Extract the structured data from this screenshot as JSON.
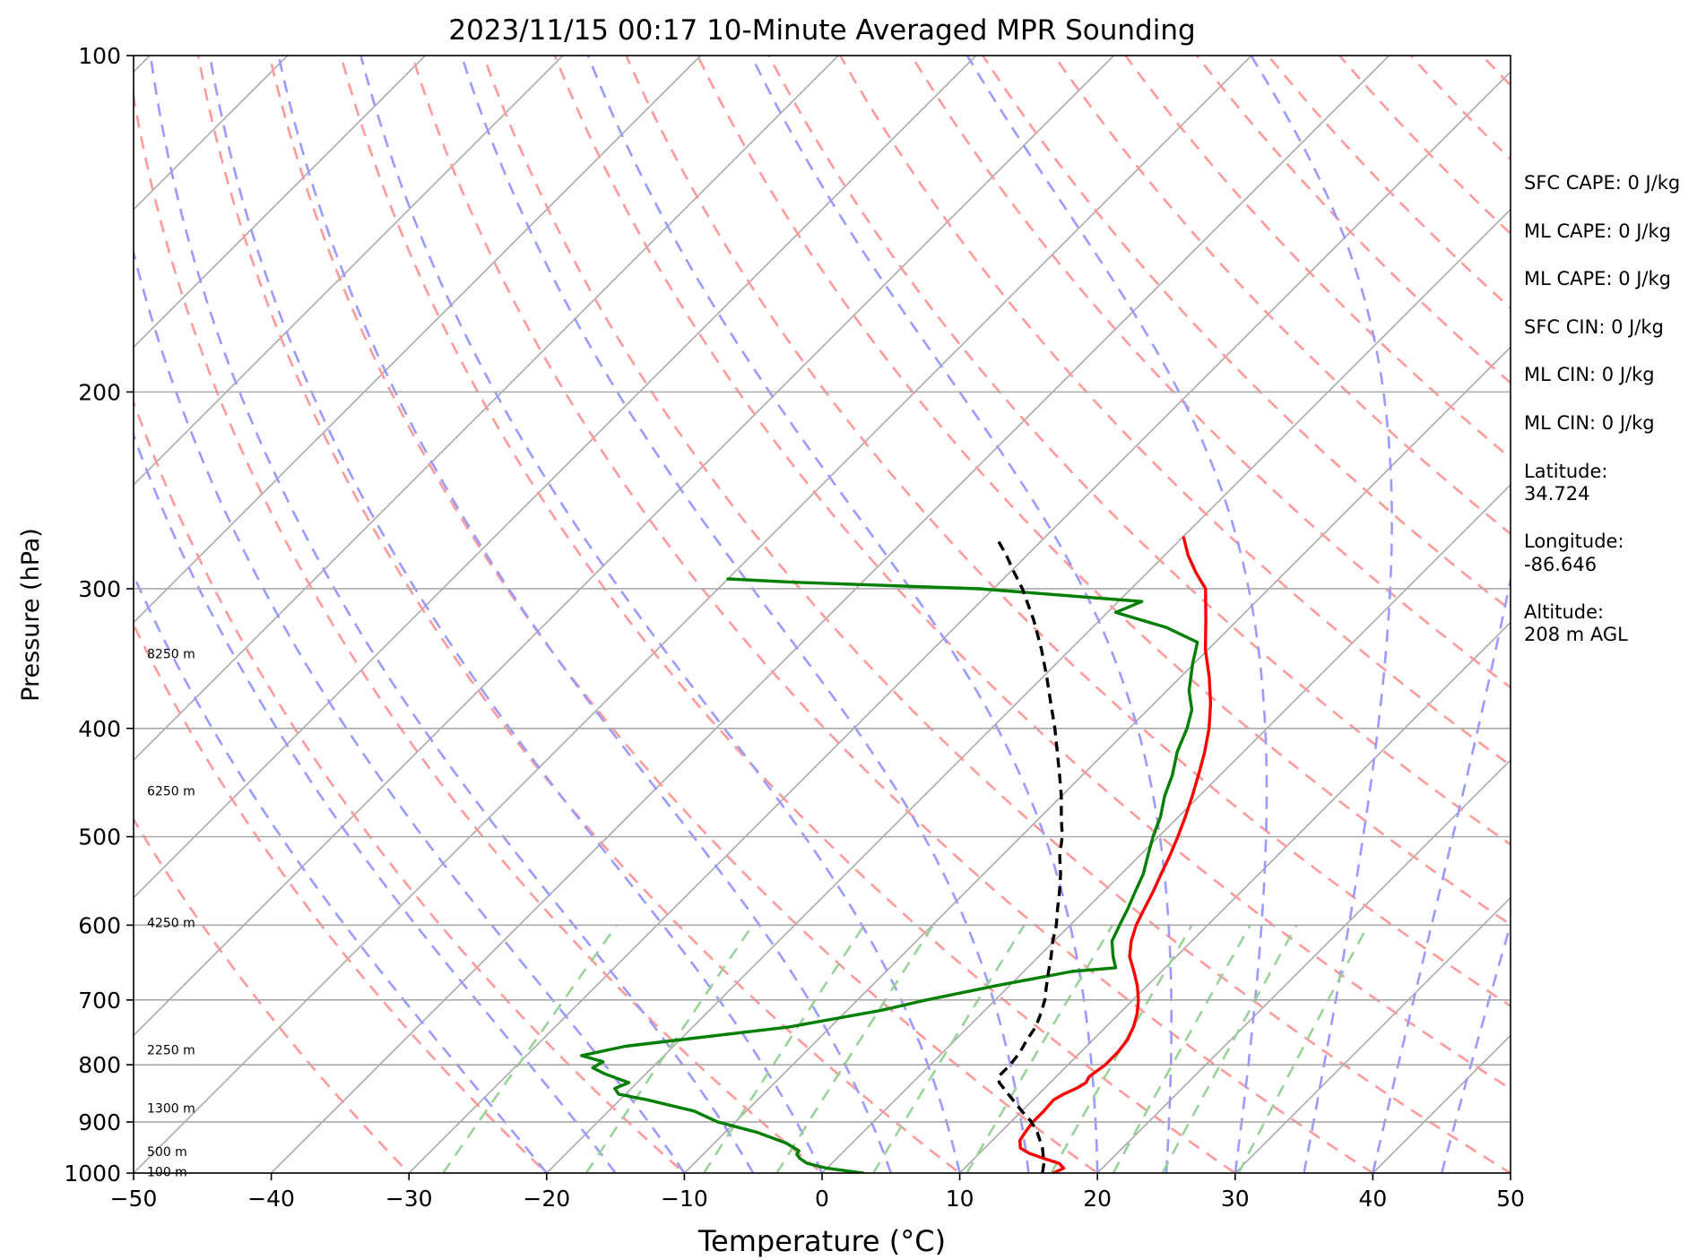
{
  "chart_data": {
    "type": "line",
    "title": "2023/11/15 00:17 10-Minute Averaged MPR Sounding",
    "xlabel": "Temperature (°C)",
    "ylabel": "Pressure (hPa)",
    "xlim": [
      -50,
      50
    ],
    "ylim": [
      1000,
      100
    ],
    "y_scale": "log",
    "grid": true,
    "x_ticks": [
      -50,
      -40,
      -30,
      -20,
      -10,
      0,
      10,
      20,
      30,
      40,
      50
    ],
    "x_tick_labels": [
      "−50",
      "−40",
      "−30",
      "−20",
      "−10",
      "0",
      "10",
      "20",
      "30",
      "40",
      "50"
    ],
    "y_ticks": [
      100,
      200,
      300,
      400,
      500,
      600,
      700,
      800,
      900,
      1000
    ],
    "y_tick_labels": [
      "100",
      "200",
      "300",
      "400",
      "500",
      "600",
      "700",
      "800",
      "900",
      "1000"
    ],
    "background_lines": {
      "dry_adiabats_color": "#ff9a9a",
      "moist_adiabats_color": "#9a9aff",
      "mixing_ratio_color": "#9ad29a",
      "isotherms_color": "#aaaaaa"
    },
    "series": [
      {
        "color": "#ff0000",
        "style": "solid",
        "points": [
          [
            1000,
            16.8
          ],
          [
            990,
            17.2
          ],
          [
            980,
            16.5
          ],
          [
            970,
            15.0
          ],
          [
            960,
            13.6
          ],
          [
            950,
            12.6
          ],
          [
            935,
            12.0
          ],
          [
            920,
            11.8
          ],
          [
            900,
            11.6
          ],
          [
            880,
            11.6
          ],
          [
            860,
            11.5
          ],
          [
            850,
            11.8
          ],
          [
            840,
            12.3
          ],
          [
            830,
            12.6
          ],
          [
            820,
            12.4
          ],
          [
            800,
            12.7
          ],
          [
            780,
            12.7
          ],
          [
            760,
            12.5
          ],
          [
            740,
            12.0
          ],
          [
            720,
            11.3
          ],
          [
            700,
            10.4
          ],
          [
            680,
            9.3
          ],
          [
            660,
            8.0
          ],
          [
            640,
            6.6
          ],
          [
            620,
            5.6
          ],
          [
            600,
            4.8
          ],
          [
            580,
            4.2
          ],
          [
            560,
            3.6
          ],
          [
            540,
            2.9
          ],
          [
            520,
            2.2
          ],
          [
            500,
            1.4
          ],
          [
            480,
            0.5
          ],
          [
            460,
            -0.5
          ],
          [
            440,
            -1.6
          ],
          [
            420,
            -2.8
          ],
          [
            400,
            -4.2
          ],
          [
            380,
            -5.9
          ],
          [
            360,
            -7.9
          ],
          [
            340,
            -10.2
          ],
          [
            320,
            -12.3
          ],
          [
            300,
            -14.6
          ],
          [
            290,
            -16.5
          ],
          [
            280,
            -18.3
          ],
          [
            270,
            -19.9
          ]
        ]
      },
      {
        "color": "#007f00",
        "style": "solid",
        "points": [
          [
            1000,
            3.0
          ],
          [
            990,
            0.0
          ],
          [
            980,
            -1.8
          ],
          [
            970,
            -2.7
          ],
          [
            962,
            -3.2
          ],
          [
            955,
            -3.3
          ],
          [
            940,
            -4.8
          ],
          [
            920,
            -7.6
          ],
          [
            900,
            -11.3
          ],
          [
            880,
            -13.8
          ],
          [
            860,
            -18.0
          ],
          [
            850,
            -20.5
          ],
          [
            840,
            -21.2
          ],
          [
            830,
            -20.6
          ],
          [
            815,
            -23.0
          ],
          [
            805,
            -24.3
          ],
          [
            795,
            -24.0
          ],
          [
            785,
            -26.0
          ],
          [
            770,
            -23.5
          ],
          [
            740,
            -13.0
          ],
          [
            715,
            -7.5
          ],
          [
            700,
            -5.0
          ],
          [
            680,
            -1.0
          ],
          [
            660,
            3.5
          ],
          [
            655,
            6.4
          ],
          [
            640,
            5.4
          ],
          [
            620,
            4.2
          ],
          [
            600,
            3.6
          ],
          [
            580,
            3.0
          ],
          [
            560,
            2.3
          ],
          [
            540,
            1.6
          ],
          [
            520,
            0.6
          ],
          [
            500,
            -0.4
          ],
          [
            480,
            -1.3
          ],
          [
            460,
            -2.5
          ],
          [
            440,
            -3.5
          ],
          [
            420,
            -4.8
          ],
          [
            400,
            -5.8
          ],
          [
            385,
            -6.8
          ],
          [
            370,
            -8.4
          ],
          [
            350,
            -10.1
          ],
          [
            335,
            -11.3
          ],
          [
            325,
            -14.6
          ],
          [
            315,
            -19.4
          ],
          [
            308,
            -18.3
          ],
          [
            300,
            -31.0
          ],
          [
            296,
            -45.0
          ],
          [
            294,
            -50.0
          ]
        ]
      },
      {
        "color": "#000000",
        "style": "dashed",
        "points": [
          [
            1000,
            16.0
          ],
          [
            980,
            15.4
          ],
          [
            950,
            14.2
          ],
          [
            920,
            12.7
          ],
          [
            900,
            11.5
          ],
          [
            880,
            10.0
          ],
          [
            850,
            7.8
          ],
          [
            830,
            6.3
          ],
          [
            820,
            5.8
          ],
          [
            800,
            5.8
          ],
          [
            780,
            5.6
          ],
          [
            760,
            5.2
          ],
          [
            740,
            4.9
          ],
          [
            720,
            4.3
          ],
          [
            700,
            3.6
          ],
          [
            680,
            2.7
          ],
          [
            660,
            1.8
          ],
          [
            640,
            0.9
          ],
          [
            620,
            -0.1
          ],
          [
            600,
            -1.0
          ],
          [
            580,
            -2.1
          ],
          [
            560,
            -3.2
          ],
          [
            540,
            -4.4
          ],
          [
            520,
            -5.8
          ],
          [
            500,
            -7.0
          ],
          [
            480,
            -8.5
          ],
          [
            460,
            -10.0
          ],
          [
            440,
            -11.7
          ],
          [
            420,
            -13.5
          ],
          [
            400,
            -15.4
          ],
          [
            380,
            -17.5
          ],
          [
            360,
            -19.7
          ],
          [
            340,
            -22.1
          ],
          [
            320,
            -24.8
          ],
          [
            300,
            -27.9
          ],
          [
            290,
            -29.7
          ],
          [
            280,
            -31.5
          ],
          [
            270,
            -33.5
          ]
        ]
      }
    ],
    "height_labels": [
      {
        "text": "8250 m",
        "pressure": 343
      },
      {
        "text": "6250 m",
        "pressure": 455
      },
      {
        "text": "4250 m",
        "pressure": 597
      },
      {
        "text": "2250 m",
        "pressure": 776
      },
      {
        "text": "1300 m",
        "pressure": 875
      },
      {
        "text": "500 m",
        "pressure": 957
      },
      {
        "text": "100 m",
        "pressure": 997
      }
    ]
  },
  "stats": [
    "SFC CAPE: 0 J/kg",
    "ML CAPE: 0 J/kg",
    "ML CAPE: 0 J/kg",
    "SFC CIN: 0 J/kg",
    "ML CIN: 0 J/kg",
    "ML CIN: 0 J/kg"
  ],
  "location": {
    "latitude_label": "Latitude:",
    "latitude_value": "34.724",
    "longitude_label": "Longitude:",
    "longitude_value": "-86.646",
    "altitude_label": "Altitude:",
    "altitude_value": "208 m AGL"
  }
}
